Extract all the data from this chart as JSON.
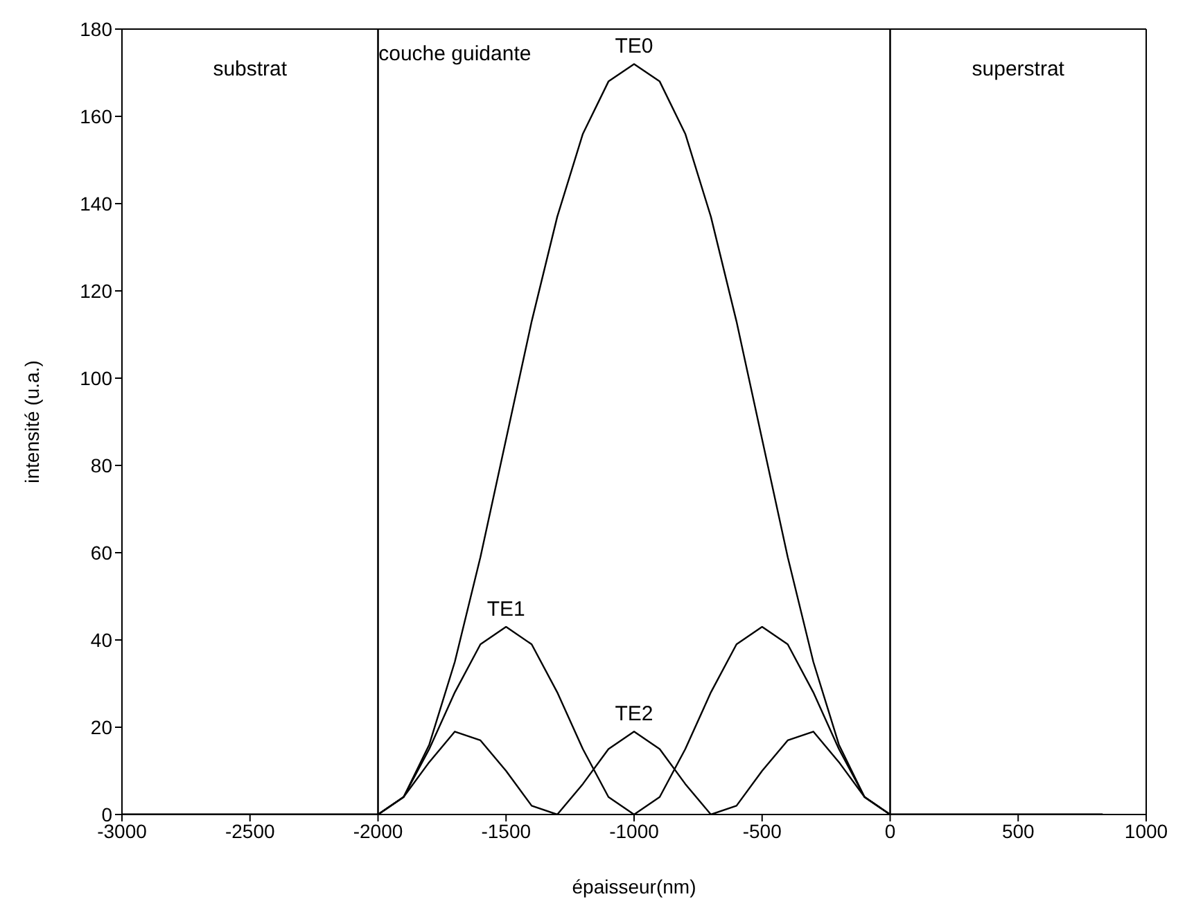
{
  "chart_data": {
    "type": "line",
    "xlabel": "épaisseur(nm)",
    "ylabel": "intensité (u.a.)",
    "x": [
      -3000,
      -2000,
      -1900,
      -1800,
      -1700,
      -1600,
      -1500,
      -1400,
      -1300,
      -1200,
      -1100,
      -1000,
      -900,
      -800,
      -700,
      -600,
      -500,
      -400,
      -300,
      -200,
      -100,
      0,
      830
    ],
    "series": [
      {
        "name": "TE0",
        "color": "#000000",
        "values": [
          0,
          0,
          4,
          16,
          35,
          59,
          86,
          113,
          137,
          156,
          168,
          172,
          168,
          156,
          137,
          113,
          86,
          59,
          35,
          16,
          4,
          0,
          0
        ]
      },
      {
        "name": "TE1",
        "color": "#000000",
        "values": [
          0,
          0,
          4,
          15,
          28,
          39,
          43,
          39,
          28,
          15,
          4,
          0,
          4,
          15,
          28,
          39,
          43,
          39,
          28,
          15,
          4,
          0,
          0
        ]
      },
      {
        "name": "TE2",
        "color": "#000000",
        "values": [
          0,
          0,
          4,
          12,
          19,
          17,
          10,
          2,
          0,
          7,
          15,
          19,
          15,
          7,
          0,
          2,
          10,
          17,
          19,
          12,
          4,
          0,
          0
        ]
      }
    ],
    "xlim": [
      -3000,
      1000
    ],
    "xticks": [
      -3000,
      -2500,
      -2000,
      -1500,
      -1000,
      -500,
      0,
      500,
      1000
    ],
    "ylim": [
      0,
      180
    ],
    "yticks": [
      0,
      20,
      40,
      60,
      80,
      100,
      120,
      140,
      160,
      180
    ],
    "grid": false,
    "legend": false,
    "marker": "none",
    "line_style": "solid",
    "ref_lines": [
      {
        "axis": "x",
        "value": -2000,
        "color": "#000000"
      },
      {
        "axis": "x",
        "value": 0,
        "color": "#000000"
      }
    ],
    "annotations": [
      "substrat",
      "couche guidante",
      "superstrat"
    ]
  }
}
